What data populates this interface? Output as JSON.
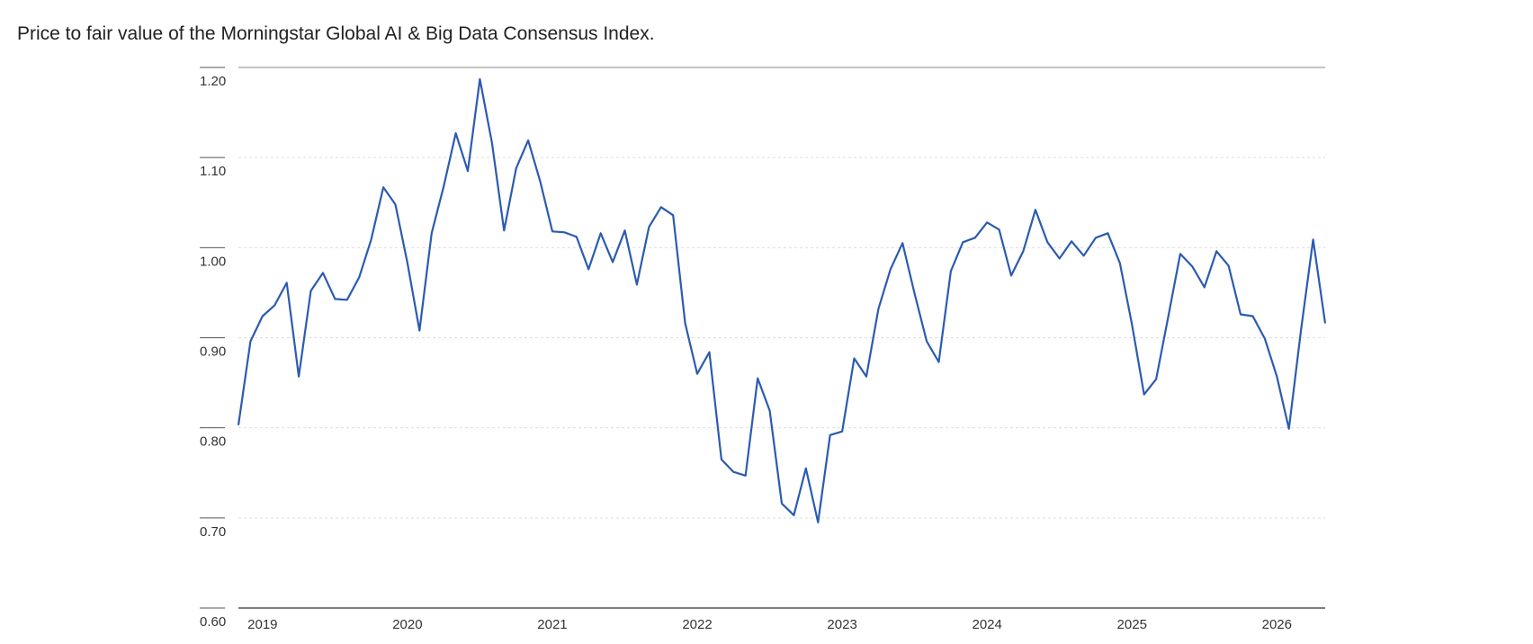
{
  "chart_data": {
    "type": "line",
    "title": "Price to fair value of the Morningstar Global AI & Big Data Consensus Index.",
    "categories": [
      null,
      null,
      "2019",
      null,
      null,
      null,
      null,
      null,
      null,
      null,
      null,
      null,
      null,
      null,
      "2020",
      null,
      null,
      null,
      null,
      null,
      null,
      null,
      null,
      null,
      null,
      null,
      "2021",
      null,
      null,
      null,
      null,
      null,
      null,
      null,
      null,
      null,
      null,
      null,
      "2022",
      null,
      null,
      null,
      null,
      null,
      null,
      null,
      null,
      null,
      null,
      null,
      "2023",
      null,
      null,
      null,
      null,
      null,
      null,
      null,
      null,
      null,
      null,
      null,
      "2024",
      null,
      null,
      null,
      null,
      null,
      null,
      null,
      null,
      null,
      null,
      null,
      "2025",
      null,
      null,
      null,
      null,
      null,
      null,
      null,
      null,
      null,
      null,
      null,
      "2026",
      null,
      null,
      null,
      null
    ],
    "series": [
      {
        "color": "#2c5bb0",
        "values": [
          0.803,
          0.896,
          0.924,
          0.936,
          0.961,
          0.857,
          0.952,
          0.972,
          0.943,
          0.942,
          0.967,
          1.009,
          1.067,
          1.048,
          0.983,
          0.908,
          1.016,
          1.068,
          1.127,
          1.085,
          1.187,
          1.116,
          1.019,
          1.088,
          1.119,
          1.073,
          1.018,
          1.017,
          1.012,
          0.976,
          1.016,
          0.984,
          1.019,
          0.959,
          1.023,
          1.045,
          1.036,
          0.916,
          0.86,
          0.884,
          0.765,
          0.751,
          0.747,
          0.855,
          0.819,
          0.716,
          0.703,
          0.755,
          0.695,
          0.792,
          0.796,
          0.877,
          0.857,
          0.932,
          0.976,
          1.005,
          0.949,
          0.896,
          0.873,
          0.974,
          1.006,
          1.011,
          1.028,
          1.02,
          0.969,
          0.996,
          1.042,
          1.006,
          0.988,
          1.007,
          0.991,
          1.011,
          1.016,
          0.983,
          0.915,
          0.837,
          0.854,
          0.923,
          0.993,
          0.979,
          0.956,
          0.996,
          0.98,
          0.926,
          0.924,
          0.899,
          0.857,
          0.799,
          0.909,
          1.009,
          0.916
        ]
      }
    ],
    "ylim": [
      0.6,
      1.2
    ],
    "yticks": [
      {
        "value": 0.6,
        "label": "0.60"
      },
      {
        "value": 0.7,
        "label": "0.70"
      },
      {
        "value": 0.8,
        "label": "0.80"
      },
      {
        "value": 0.9,
        "label": "0.90"
      },
      {
        "value": 1.0,
        "label": "1.00"
      },
      {
        "value": 1.1,
        "label": "1.10"
      },
      {
        "value": 1.2,
        "label": "1.20"
      }
    ],
    "grid": true
  }
}
